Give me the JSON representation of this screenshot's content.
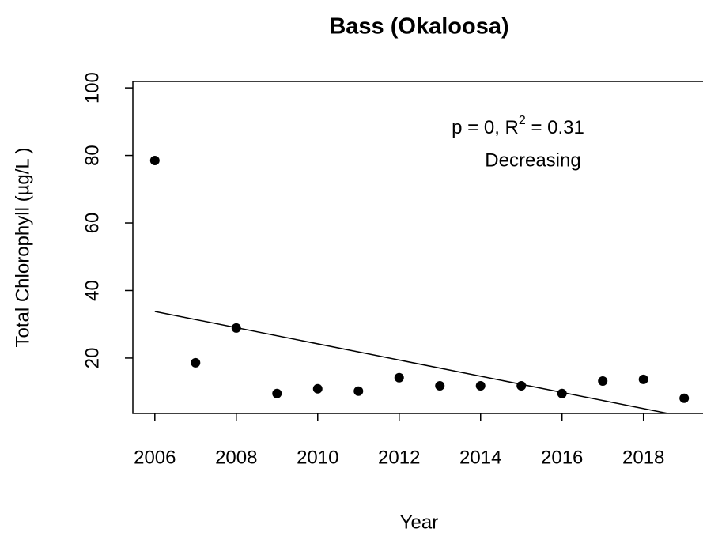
{
  "chart_data": {
    "type": "scatter",
    "title": "Bass (Okaloosa)",
    "x_label": "Year",
    "y_label": "Total Chlorophyll (µg/L )",
    "annotation": {
      "line1_prefix": "p = 0, R",
      "line1_sup": "2",
      "line1_suffix": " = 0.31",
      "line2": "Decreasing"
    },
    "x": [
      2006,
      2007,
      2008,
      2009,
      2010,
      2011,
      2012,
      2013,
      2014,
      2015,
      2016,
      2017,
      2018,
      2019
    ],
    "values": [
      78.5,
      18.6,
      28.9,
      9.5,
      10.9,
      10.2,
      14.2,
      11.8,
      11.8,
      11.8,
      9.5,
      13.2,
      13.7,
      8.1
    ],
    "color": "#000000",
    "trend": {
      "x": [
        2006,
        2018.6
      ],
      "values": [
        33.8,
        3.6
      ],
      "color": "#000000"
    },
    "xlim": [
      2005.46,
      2019.54
    ],
    "ylim": [
      3.6,
      101.9
    ],
    "xticks": [
      2006,
      2008,
      2010,
      2012,
      2014,
      2016,
      2018
    ],
    "yticks": [
      20,
      40,
      60,
      80,
      100
    ],
    "grid": false
  }
}
